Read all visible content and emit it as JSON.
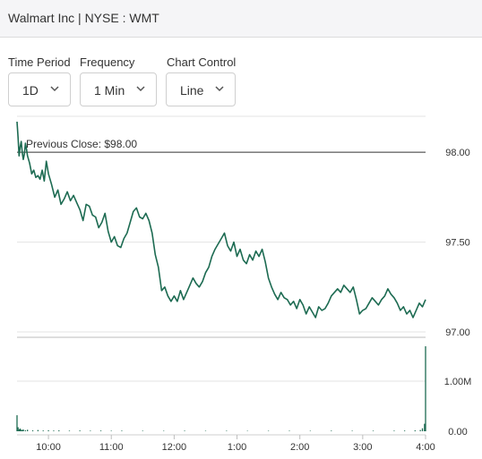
{
  "header": {
    "title": "Walmart Inc | NYSE : WMT"
  },
  "controls": {
    "time_period": {
      "label": "Time Period",
      "value": "1D"
    },
    "frequency": {
      "label": "Frequency",
      "value": "1 Min"
    },
    "chart_control": {
      "label": "Chart Control",
      "value": "Line"
    }
  },
  "colors": {
    "line": "#1d6b52",
    "reference": "#333333",
    "grid": "#e3e3e3"
  },
  "chart_data": {
    "type": "line",
    "title": "",
    "reference_label": "Previous Close: $98.00",
    "reference_value": 98.0,
    "price_ylim": [
      96.97,
      98.2
    ],
    "price_ticks": [
      98.0,
      97.5,
      97.0
    ],
    "price_tick_labels": [
      "98.00",
      "97.50",
      "97.00"
    ],
    "volume_ticks": [
      1000000,
      0
    ],
    "volume_tick_labels": [
      "1.00M",
      "0.00"
    ],
    "time_tick_labels": [
      "10:00",
      "11:00",
      "12:00",
      "1:00",
      "2:00",
      "3:00",
      "4:00"
    ],
    "time_tick_minutes": [
      30,
      90,
      150,
      210,
      270,
      330,
      390
    ],
    "x_range_minutes": [
      0,
      390
    ],
    "grid": true,
    "series": [
      {
        "values_x_minutes": [
          0,
          1,
          2,
          3,
          4,
          5,
          6,
          7,
          8,
          9,
          10,
          12,
          14,
          16,
          18,
          20,
          22,
          24,
          26,
          28,
          30,
          33,
          36,
          39,
          42,
          45,
          48,
          51,
          54,
          57,
          60,
          63,
          66,
          69,
          72,
          75,
          78,
          81,
          84,
          87,
          90,
          93,
          96,
          99,
          102,
          105,
          108,
          111,
          114,
          117,
          120,
          123,
          126,
          129,
          132,
          135,
          138,
          141,
          144,
          147,
          150,
          153,
          156,
          159,
          162,
          165,
          168,
          171,
          174,
          177,
          180,
          183,
          186,
          189,
          192,
          195,
          198,
          201,
          204,
          207,
          210,
          213,
          216,
          219,
          222,
          225,
          228,
          231,
          234,
          237,
          240,
          243,
          246,
          249,
          252,
          255,
          258,
          261,
          264,
          267,
          270,
          273,
          276,
          279,
          282,
          285,
          288,
          291,
          294,
          297,
          300,
          303,
          306,
          309,
          312,
          315,
          318,
          321,
          324,
          327,
          330,
          333,
          336,
          339,
          342,
          345,
          348,
          351,
          354,
          357,
          360,
          363,
          366,
          369,
          372,
          375,
          378,
          381,
          384,
          387,
          390
        ],
        "values_y": [
          98.17,
          98.08,
          97.98,
          98.03,
          98.06,
          98.0,
          97.96,
          97.99,
          98.05,
          98.02,
          97.98,
          97.94,
          97.88,
          97.9,
          97.86,
          97.87,
          97.85,
          97.9,
          97.84,
          97.95,
          97.88,
          97.82,
          97.75,
          97.79,
          97.71,
          97.74,
          97.78,
          97.73,
          97.76,
          97.72,
          97.68,
          97.62,
          97.71,
          97.7,
          97.65,
          97.64,
          97.58,
          97.61,
          97.66,
          97.56,
          97.5,
          97.53,
          97.48,
          97.47,
          97.52,
          97.55,
          97.61,
          97.67,
          97.69,
          97.64,
          97.63,
          97.66,
          97.62,
          97.55,
          97.43,
          97.36,
          97.23,
          97.25,
          97.2,
          97.17,
          97.2,
          97.17,
          97.23,
          97.18,
          97.22,
          97.26,
          97.3,
          97.27,
          97.25,
          97.28,
          97.33,
          97.36,
          97.42,
          97.46,
          97.49,
          97.52,
          97.55,
          97.48,
          97.45,
          97.5,
          97.42,
          97.46,
          97.4,
          97.38,
          97.43,
          97.4,
          97.45,
          97.42,
          97.46,
          97.39,
          97.3,
          97.25,
          97.21,
          97.18,
          97.22,
          97.19,
          97.18,
          97.15,
          97.17,
          97.13,
          97.18,
          97.15,
          97.1,
          97.14,
          97.11,
          97.08,
          97.14,
          97.12,
          97.13,
          97.16,
          97.2,
          97.22,
          97.24,
          97.22,
          97.26,
          97.24,
          97.22,
          97.25,
          97.18,
          97.1,
          97.12,
          97.13,
          97.16,
          97.19,
          97.17,
          97.15,
          97.18,
          97.2,
          97.24,
          97.21,
          97.19,
          97.16,
          97.12,
          97.14,
          97.1,
          97.12,
          97.08,
          97.12,
          97.16,
          97.14,
          97.18
        ]
      }
    ],
    "volume": {
      "x_minutes": [
        0,
        1,
        2,
        3,
        4,
        5,
        6,
        8,
        10,
        15,
        20,
        25,
        30,
        35,
        40,
        50,
        60,
        70,
        80,
        90,
        100,
        120,
        140,
        160,
        180,
        200,
        220,
        240,
        260,
        280,
        300,
        320,
        340,
        360,
        370,
        380,
        385,
        387,
        389,
        390
      ],
      "values": [
        320000,
        80000,
        40000,
        55000,
        30000,
        25000,
        35000,
        20000,
        30000,
        18000,
        25000,
        15000,
        20000,
        14000,
        18000,
        12000,
        15000,
        11000,
        14000,
        10000,
        12000,
        10000,
        9000,
        11000,
        9000,
        10000,
        8000,
        9000,
        10000,
        9000,
        12000,
        10000,
        11000,
        12000,
        14000,
        18000,
        25000,
        60000,
        150000,
        1700000
      ]
    }
  }
}
